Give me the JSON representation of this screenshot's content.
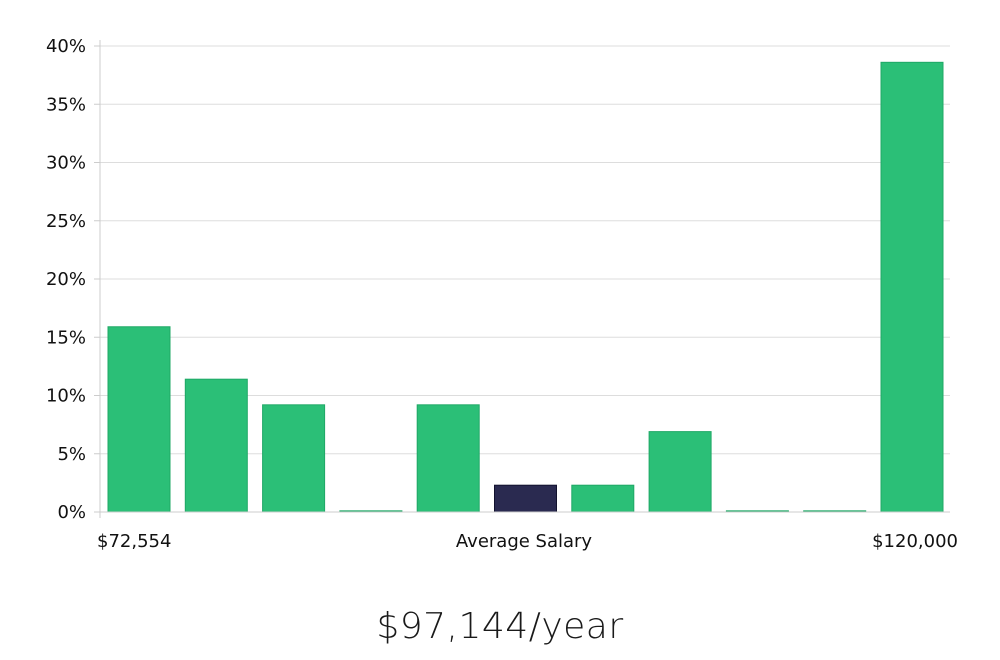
{
  "chart_data": {
    "type": "bar",
    "yunit": "%",
    "ylim": [
      0,
      40
    ],
    "yticks": [
      0,
      5,
      10,
      15,
      20,
      25,
      30,
      35,
      40
    ],
    "grid": true,
    "x_labels": {
      "left": "$72,554",
      "center": "Average Salary",
      "right": "$120,000"
    },
    "values": [
      15.9,
      11.4,
      9.2,
      0.1,
      9.2,
      2.3,
      2.3,
      6.9,
      0.1,
      0.1,
      38.6
    ],
    "highlight_index": 5,
    "colors": {
      "bar": "#2bbf77",
      "bar_edge": "#1fa866",
      "highlight": "#2a2a50",
      "highlight_edge": "#12122e",
      "grid": "#dddddd",
      "axis": "#cccccc"
    }
  },
  "summary": {
    "salary": "$97,144/year"
  }
}
